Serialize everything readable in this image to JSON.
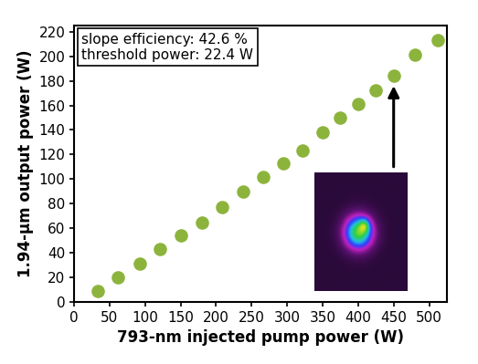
{
  "chart_data": {
    "type": "scatter",
    "x_label": "793-nm injected pump power (W)",
    "y_label": "1.94-μm output power (W)",
    "annotations": [
      "slope efficiency: 42.6 %",
      "threshold power: 22.4 W"
    ],
    "x": [
      33,
      62,
      92,
      121,
      151,
      180,
      209,
      238,
      266,
      294,
      322,
      350,
      375,
      400,
      425,
      450,
      480,
      512
    ],
    "values": [
      9,
      20,
      31,
      43,
      54,
      65,
      77,
      90,
      102,
      113,
      123,
      138,
      150,
      161,
      172,
      184,
      201,
      213
    ],
    "color": "#8cb43c",
    "marker": "o",
    "xlim": [
      0,
      525
    ],
    "xticks": [
      0,
      50,
      100,
      150,
      200,
      250,
      300,
      350,
      400,
      450,
      500
    ],
    "ylim": [
      0,
      225
    ],
    "yticks": [
      0,
      20,
      40,
      60,
      80,
      100,
      120,
      140,
      160,
      180,
      200,
      220
    ],
    "grid": false
  }
}
